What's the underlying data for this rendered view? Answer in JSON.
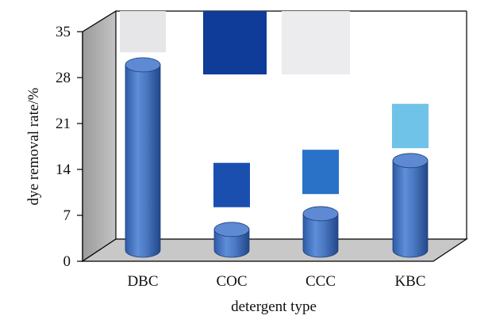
{
  "chart_data": {
    "type": "bar",
    "title": "",
    "xlabel": "detergent type",
    "ylabel": "dye removal rate/%",
    "categories": [
      "DBC",
      "COC",
      "CCC",
      "KBC"
    ],
    "values": [
      28.5,
      3.4,
      5.8,
      13.9
    ],
    "ylim": [
      0,
      35
    ],
    "yticks": [
      "0",
      "7",
      "14",
      "21",
      "28",
      "35"
    ],
    "grid": false,
    "legend": "none",
    "style": "3d-cylinder",
    "bar_color": "#4a78c2",
    "fabric_swatches": [
      {
        "category": "DBC",
        "color": "#e6e6e9",
        "level": 35.5
      },
      {
        "category": "COC",
        "color": "#0e3c98",
        "level": 35.5
      },
      {
        "category": "COC",
        "color": "#1a4fb0",
        "level": 15.0
      },
      {
        "category": "CCC",
        "color": "#ececef",
        "level": 35.5
      },
      {
        "category": "CCC",
        "color": "#2a72c8",
        "level": 17.0
      },
      {
        "category": "KBC",
        "color": "#6fc3e8",
        "level": 24.0
      }
    ]
  }
}
